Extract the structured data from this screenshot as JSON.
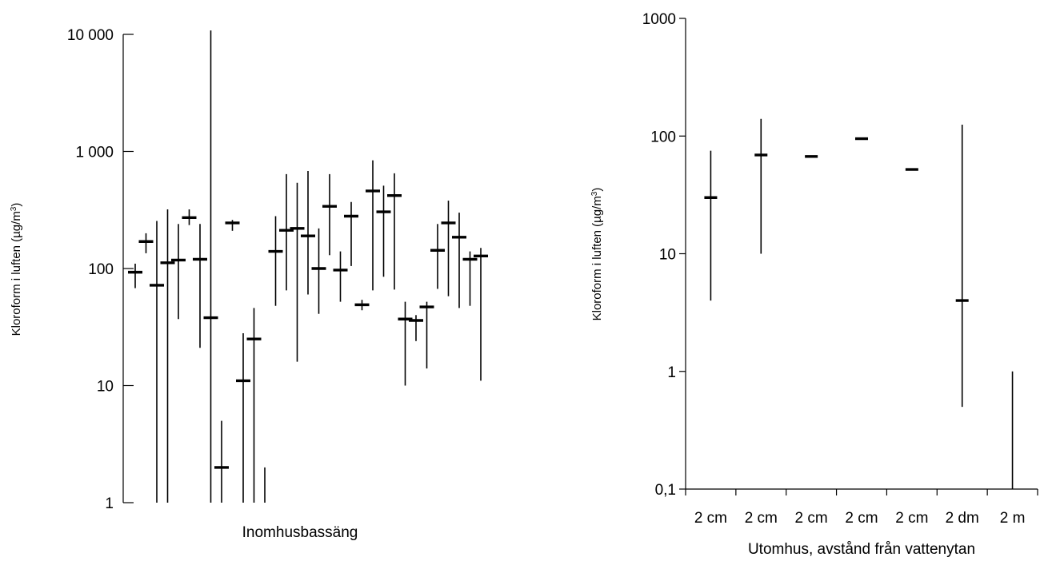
{
  "chart_data": [
    {
      "type": "range",
      "yscale": "log",
      "ylim": [
        1,
        10000
      ],
      "yticks": [
        {
          "value": 1,
          "label": "1"
        },
        {
          "value": 10,
          "label": "10"
        },
        {
          "value": 100,
          "label": "100"
        },
        {
          "value": 1000,
          "label": "1 000"
        },
        {
          "value": 10000,
          "label": "10 000"
        }
      ],
      "xlabel": "Inomhusbassäng",
      "ylabel": "Kloroform i luften (µg/m³)",
      "ylabel_base": "Kloroform i luften (µg/m",
      "ylabel_sup": "3",
      "ylabel_close": ")",
      "points": [
        {
          "mean": 93,
          "min": 68,
          "max": 110
        },
        {
          "mean": 170,
          "min": 135,
          "max": 200
        },
        {
          "mean": 72,
          "min": 1,
          "max": 255
        },
        {
          "mean": 112,
          "min": 1,
          "max": 320
        },
        {
          "mean": 118,
          "min": 37,
          "max": 240
        },
        {
          "mean": 272,
          "min": 235,
          "max": 320
        },
        {
          "mean": 120,
          "min": 21,
          "max": 240
        },
        {
          "mean": 38,
          "min": 1,
          "max": 10800
        },
        {
          "mean": 2,
          "min": 1,
          "max": 5
        },
        {
          "mean": 245,
          "min": 210,
          "max": 260
        },
        {
          "mean": 11,
          "min": 1,
          "max": 28
        },
        {
          "mean": 25,
          "min": 1,
          "max": 46
        },
        {
          "mean": null,
          "min": 1,
          "max": 2
        },
        {
          "mean": 140,
          "min": 48,
          "max": 280
        },
        {
          "mean": 212,
          "min": 65,
          "max": 640
        },
        {
          "mean": 220,
          "min": 16,
          "max": 540
        },
        {
          "mean": 190,
          "min": 60,
          "max": 680
        },
        {
          "mean": 100,
          "min": 41,
          "max": 220
        },
        {
          "mean": 340,
          "min": 130,
          "max": 640
        },
        {
          "mean": 97,
          "min": 52,
          "max": 140
        },
        {
          "mean": 280,
          "min": 105,
          "max": 370
        },
        {
          "mean": 49,
          "min": 44,
          "max": 54
        },
        {
          "mean": 460,
          "min": 65,
          "max": 840
        },
        {
          "mean": 305,
          "min": 85,
          "max": 510
        },
        {
          "mean": 420,
          "min": 66,
          "max": 650
        },
        {
          "mean": 37,
          "min": 10,
          "max": 52
        },
        {
          "mean": 36,
          "min": 24,
          "max": 40
        },
        {
          "mean": 47,
          "min": 14,
          "max": 52
        },
        {
          "mean": 143,
          "min": 67,
          "max": 240
        },
        {
          "mean": 245,
          "min": 58,
          "max": 380
        },
        {
          "mean": 185,
          "min": 46,
          "max": 300
        },
        {
          "mean": 120,
          "min": 48,
          "max": 140
        },
        {
          "mean": 128,
          "min": 11,
          "max": 150
        }
      ]
    },
    {
      "type": "range",
      "yscale": "log",
      "ylim": [
        0.1,
        1000
      ],
      "yticks": [
        {
          "value": 0.1,
          "label": "0,1"
        },
        {
          "value": 1,
          "label": "1"
        },
        {
          "value": 10,
          "label": "10"
        },
        {
          "value": 100,
          "label": "100"
        },
        {
          "value": 1000,
          "label": "1000"
        }
      ],
      "categories": [
        "2 cm",
        "2 cm",
        "2 cm",
        "2 cm",
        "2 cm",
        "2 dm",
        "2 m"
      ],
      "xlabel": "Utomhus, avstånd från vattenytan",
      "ylabel": "Kloroform i luften (µg/m³)",
      "ylabel_base": "Kloroform i luften (µg/m",
      "ylabel_sup": "3",
      "ylabel_close": ")",
      "points": [
        {
          "mean": 30,
          "min": 4,
          "max": 75
        },
        {
          "mean": 69,
          "min": 10,
          "max": 140
        },
        {
          "mean": 67,
          "min": null,
          "max": null
        },
        {
          "mean": 95,
          "min": null,
          "max": null
        },
        {
          "mean": 52,
          "min": null,
          "max": null
        },
        {
          "mean": 4,
          "min": 0.5,
          "max": 125
        },
        {
          "mean": null,
          "min": 0.1,
          "max": 1
        }
      ]
    }
  ]
}
